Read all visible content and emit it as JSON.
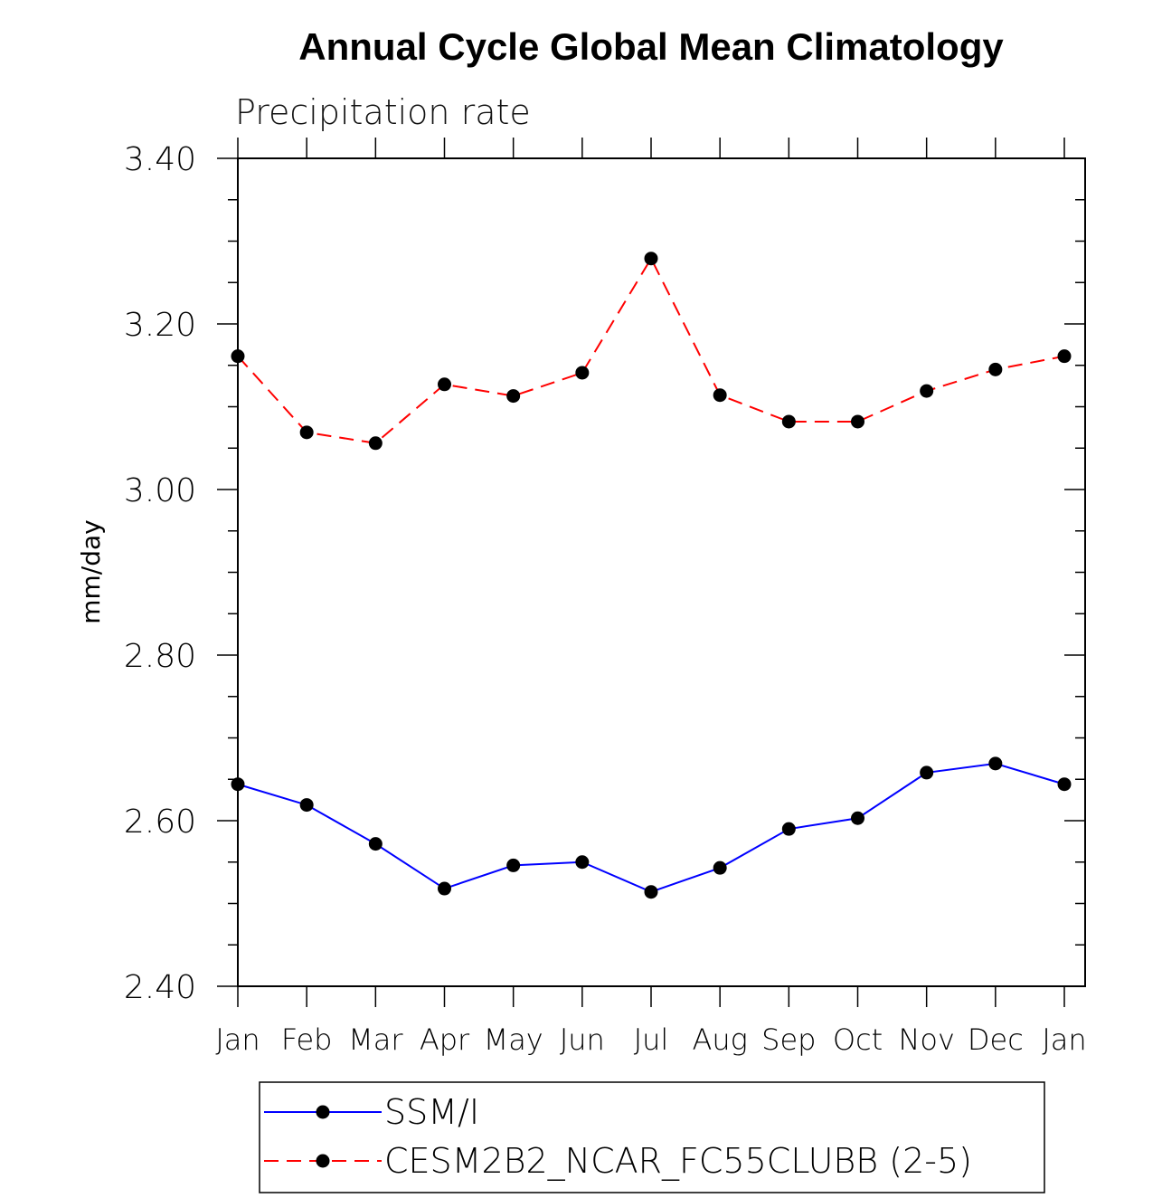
{
  "chart_data": {
    "type": "line",
    "title": "Annual Cycle Global Mean Climatology",
    "subtitle": "Precipitation rate",
    "xlabel": "",
    "ylabel": "mm/day",
    "ylim": [
      2.4,
      3.4
    ],
    "yticks": [
      "2.40",
      "2.60",
      "2.80",
      "3.00",
      "3.20",
      "3.40"
    ],
    "categories": [
      "Jan",
      "Feb",
      "Mar",
      "Apr",
      "May",
      "Jun",
      "Jul",
      "Aug",
      "Sep",
      "Oct",
      "Nov",
      "Dec",
      "Jan"
    ],
    "grid": false,
    "legend_position": "bottom",
    "series": [
      {
        "name": "SSM/I",
        "color": "#0000ff",
        "dash": "solid",
        "values": [
          2.644,
          2.619,
          2.572,
          2.518,
          2.546,
          2.55,
          2.514,
          2.543,
          2.59,
          2.603,
          2.658,
          2.669,
          2.644
        ]
      },
      {
        "name": "CESM2B2_NCAR_FC55CLUBB (2-5)",
        "color": "#ff0000",
        "dash": "dashed",
        "values": [
          3.161,
          3.069,
          3.056,
          3.127,
          3.113,
          3.141,
          3.279,
          3.114,
          3.082,
          3.082,
          3.119,
          3.145,
          3.161
        ]
      }
    ]
  }
}
